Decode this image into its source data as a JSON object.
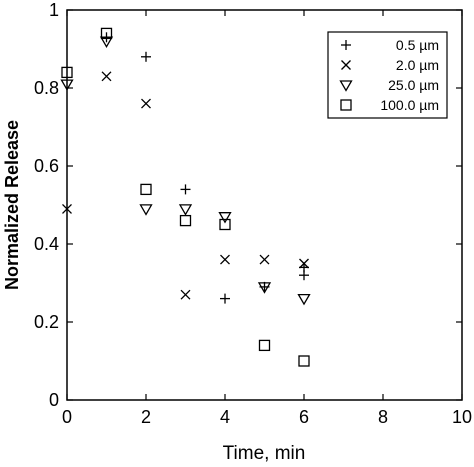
{
  "chart_data": {
    "type": "scatter",
    "title": "",
    "xlabel": "Time, min",
    "ylabel": "Normalized Release",
    "xlim": [
      0,
      10
    ],
    "ylim": [
      0,
      1
    ],
    "xticks": [
      "0",
      "2",
      "4",
      "6",
      "8",
      "10"
    ],
    "yticks": [
      "0",
      "0.2",
      "0.4",
      "0.6",
      "0.8",
      "1"
    ],
    "grid": false,
    "legend_position": "top-right",
    "series": [
      {
        "name": "0.5 µm",
        "marker": "plus",
        "x": [
          1,
          2,
          3,
          4,
          5,
          6,
          6
        ],
        "y": [
          0.93,
          0.88,
          0.54,
          0.26,
          0.29,
          0.32,
          0.34
        ]
      },
      {
        "name": "2.0 µm",
        "marker": "x",
        "x": [
          0,
          1,
          2,
          3,
          4,
          5,
          6
        ],
        "y": [
          0.49,
          0.83,
          0.76,
          0.27,
          0.36,
          0.36,
          0.35
        ]
      },
      {
        "name": "25.0 µm",
        "marker": "triangle-down",
        "x": [
          0,
          1,
          2,
          3,
          4,
          5,
          6
        ],
        "y": [
          0.81,
          0.92,
          0.49,
          0.49,
          0.47,
          0.29,
          0.26
        ]
      },
      {
        "name": "100.0 µm",
        "marker": "square",
        "x": [
          0,
          1,
          2,
          3,
          4,
          5,
          6
        ],
        "y": [
          0.84,
          0.94,
          0.54,
          0.46,
          0.45,
          0.14,
          0.1
        ]
      }
    ]
  }
}
